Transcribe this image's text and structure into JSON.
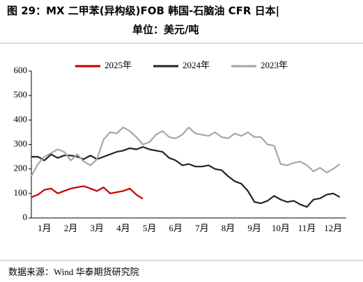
{
  "chart_data": {
    "type": "line",
    "title": "图 29：MX 二甲苯(异构级)FOB 韩国-石脑油 CFR 日本|",
    "subtitle": "单位：美元/吨",
    "source": "数据来源：Wind 华泰期货研究院",
    "x": [
      0,
      0.25,
      0.5,
      0.75,
      1,
      1.25,
      1.5,
      1.75,
      2,
      2.25,
      2.5,
      2.75,
      3,
      3.25,
      3.5,
      3.75,
      4,
      4.25,
      4.5,
      4.75,
      5,
      5.25,
      5.5,
      5.75,
      6,
      6.25,
      6.5,
      6.75,
      7,
      7.25,
      7.5,
      7.75,
      8,
      8.25,
      8.5,
      8.75,
      9,
      9.25,
      9.5,
      9.75,
      10,
      10.25,
      10.5,
      10.75,
      11,
      11.25,
      11.5,
      11.75
    ],
    "xlim": [
      0,
      12
    ],
    "xticks": [
      {
        "value": 0.5,
        "label": "1月"
      },
      {
        "value": 1.5,
        "label": "2月"
      },
      {
        "value": 2.5,
        "label": "3月"
      },
      {
        "value": 3.5,
        "label": "4月"
      },
      {
        "value": 4.5,
        "label": "5月"
      },
      {
        "value": 5.5,
        "label": "6月"
      },
      {
        "value": 6.5,
        "label": "7月"
      },
      {
        "value": 7.5,
        "label": "8月"
      },
      {
        "value": 8.5,
        "label": "9月"
      },
      {
        "value": 9.5,
        "label": "10月"
      },
      {
        "value": 10.5,
        "label": "11月"
      },
      {
        "value": 11.5,
        "label": "12月"
      }
    ],
    "ylim": [
      0,
      600
    ],
    "yticks": [
      0,
      100,
      200,
      300,
      400,
      500,
      600
    ],
    "series": [
      {
        "name": "2025年",
        "color": "#c00000",
        "values": [
          85,
          95,
          115,
          120,
          100,
          110,
          120,
          125,
          130,
          120,
          110,
          125,
          100,
          105,
          110,
          120,
          95,
          78,
          null,
          null,
          null,
          null,
          null,
          null,
          null,
          null,
          null,
          null,
          null,
          null,
          null,
          null,
          null,
          null,
          null,
          null,
          null,
          null,
          null,
          null,
          null,
          null,
          null,
          null,
          null,
          null,
          null,
          null
        ]
      },
      {
        "name": "2024年",
        "color": "#222222",
        "values": [
          250,
          250,
          235,
          260,
          245,
          255,
          255,
          250,
          240,
          255,
          240,
          250,
          260,
          270,
          275,
          285,
          280,
          290,
          280,
          275,
          270,
          245,
          235,
          215,
          220,
          210,
          210,
          215,
          200,
          195,
          170,
          150,
          140,
          110,
          65,
          60,
          70,
          90,
          75,
          65,
          70,
          55,
          45,
          75,
          80,
          95,
          100,
          85
        ]
      },
      {
        "name": "2023年",
        "color": "#a6a6a6",
        "values": [
          170,
          220,
          250,
          265,
          280,
          270,
          235,
          260,
          230,
          215,
          240,
          320,
          350,
          345,
          370,
          355,
          330,
          300,
          310,
          340,
          355,
          330,
          325,
          340,
          370,
          345,
          340,
          335,
          350,
          330,
          325,
          345,
          335,
          350,
          330,
          330,
          300,
          295,
          220,
          215,
          225,
          230,
          215,
          190,
          205,
          185,
          200,
          220
        ]
      }
    ]
  }
}
